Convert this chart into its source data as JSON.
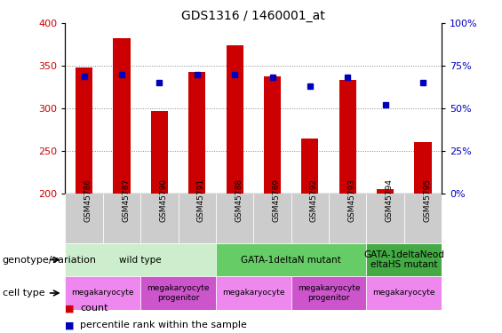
{
  "title": "GDS1316 / 1460001_at",
  "samples": [
    "GSM45786",
    "GSM45787",
    "GSM45790",
    "GSM45791",
    "GSM45788",
    "GSM45789",
    "GSM45792",
    "GSM45793",
    "GSM45794",
    "GSM45795"
  ],
  "counts": [
    348,
    383,
    297,
    343,
    374,
    338,
    264,
    333,
    205,
    260
  ],
  "percentiles": [
    69,
    70,
    65,
    70,
    70,
    68,
    63,
    68,
    52,
    65
  ],
  "ylim_left": [
    200,
    400
  ],
  "ylim_right": [
    0,
    100
  ],
  "yticks_left": [
    200,
    250,
    300,
    350,
    400
  ],
  "yticks_right": [
    0,
    25,
    50,
    75,
    100
  ],
  "bar_color": "#cc0000",
  "dot_color": "#0000bb",
  "bar_width": 0.45,
  "genotype_groups": [
    {
      "label": "wild type",
      "start": 0,
      "end": 3,
      "color": "#cceecc"
    },
    {
      "label": "GATA-1deltaN mutant",
      "start": 4,
      "end": 7,
      "color": "#66cc66"
    },
    {
      "label": "GATA-1deltaNeod\neltaHS mutant",
      "start": 8,
      "end": 9,
      "color": "#44aa44"
    }
  ],
  "celltype_groups": [
    {
      "label": "megakaryocyte",
      "start": 0,
      "end": 1,
      "color": "#ee88ee"
    },
    {
      "label": "megakaryocyte\nprogenitor",
      "start": 2,
      "end": 3,
      "color": "#cc55cc"
    },
    {
      "label": "megakaryocyte",
      "start": 4,
      "end": 5,
      "color": "#ee88ee"
    },
    {
      "label": "megakaryocyte\nprogenitor",
      "start": 6,
      "end": 7,
      "color": "#cc55cc"
    },
    {
      "label": "megakaryocyte",
      "start": 8,
      "end": 9,
      "color": "#ee88ee"
    }
  ],
  "legend_count_color": "#cc0000",
  "legend_dot_color": "#0000bb",
  "genotype_label": "genotype/variation",
  "celltype_label": "cell type",
  "grid_color": "#888888",
  "tick_label_color_left": "#cc0000",
  "tick_label_color_right": "#0000bb",
  "xticklabel_bg": "#cccccc"
}
